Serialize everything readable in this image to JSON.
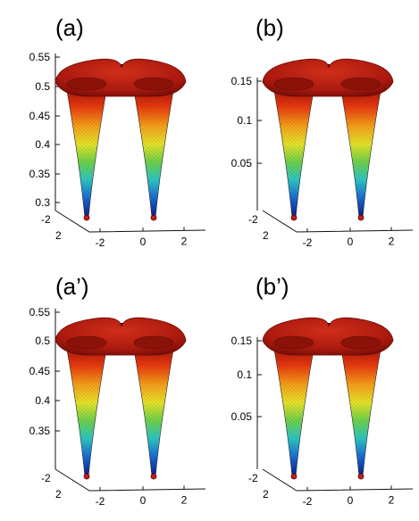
{
  "colors": {
    "background": "#ffffff",
    "axis": "#111111",
    "rim_top": "#c01810",
    "rim_dark": "#6a0c06"
  },
  "chart_data": [
    {
      "type": "surface",
      "title": "(a)",
      "colormap": "jet",
      "xticks": [
        "-2",
        "0",
        "2"
      ],
      "y_corner_ticks": [
        "-2",
        "2"
      ],
      "zticks": [
        "0.55",
        "0.5",
        "0.45",
        "0.4",
        "0.35",
        "0.3"
      ],
      "zlim": [
        0.27,
        0.55
      ]
    },
    {
      "type": "surface",
      "title": "(b)",
      "colormap": "jet",
      "xticks": [
        "-2",
        "0",
        "2"
      ],
      "y_corner_ticks": [
        "-2",
        "2"
      ],
      "zticks": [
        "0.15",
        "0.1",
        "0.05"
      ],
      "zlim": [
        0,
        0.17
      ]
    },
    {
      "type": "surface",
      "title": "(a’)",
      "colormap": "jet",
      "xticks": [
        "-2",
        "0",
        "2"
      ],
      "y_corner_ticks": [
        "-2",
        "2"
      ],
      "zticks": [
        "0.55",
        "0.5",
        "0.45",
        "0.4",
        "0.35"
      ],
      "zlim": [
        0.31,
        0.55
      ]
    },
    {
      "type": "surface",
      "title": "(b’)",
      "colormap": "jet",
      "xticks": [
        "-2",
        "0",
        "2"
      ],
      "y_corner_ticks": [
        "-2",
        "2"
      ],
      "zticks": [
        "0.15",
        "0.1",
        "0.05"
      ],
      "zlim": [
        0,
        0.17
      ]
    }
  ]
}
